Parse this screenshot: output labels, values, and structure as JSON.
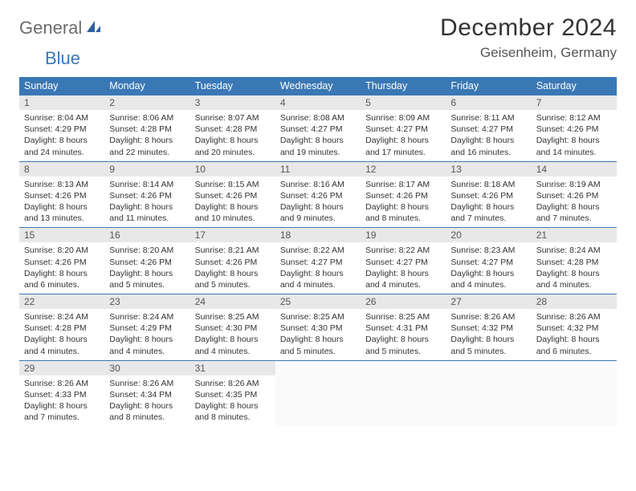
{
  "logo": {
    "part1": "General",
    "part2": "Blue"
  },
  "title": "December 2024",
  "location": "Geisenheim, Germany",
  "colors": {
    "header_bg": "#3a78b5",
    "header_text": "#ffffff",
    "daynum_bg": "#e8e8e8",
    "border": "#3a78b5",
    "logo_gray": "#6c6c6c",
    "logo_blue": "#3a78b5"
  },
  "calendar": {
    "type": "table",
    "columns": [
      "Sunday",
      "Monday",
      "Tuesday",
      "Wednesday",
      "Thursday",
      "Friday",
      "Saturday"
    ],
    "days": [
      {
        "n": "1",
        "sunrise": "8:04 AM",
        "sunset": "4:29 PM",
        "daylight": "8 hours and 24 minutes."
      },
      {
        "n": "2",
        "sunrise": "8:06 AM",
        "sunset": "4:28 PM",
        "daylight": "8 hours and 22 minutes."
      },
      {
        "n": "3",
        "sunrise": "8:07 AM",
        "sunset": "4:28 PM",
        "daylight": "8 hours and 20 minutes."
      },
      {
        "n": "4",
        "sunrise": "8:08 AM",
        "sunset": "4:27 PM",
        "daylight": "8 hours and 19 minutes."
      },
      {
        "n": "5",
        "sunrise": "8:09 AM",
        "sunset": "4:27 PM",
        "daylight": "8 hours and 17 minutes."
      },
      {
        "n": "6",
        "sunrise": "8:11 AM",
        "sunset": "4:27 PM",
        "daylight": "8 hours and 16 minutes."
      },
      {
        "n": "7",
        "sunrise": "8:12 AM",
        "sunset": "4:26 PM",
        "daylight": "8 hours and 14 minutes."
      },
      {
        "n": "8",
        "sunrise": "8:13 AM",
        "sunset": "4:26 PM",
        "daylight": "8 hours and 13 minutes."
      },
      {
        "n": "9",
        "sunrise": "8:14 AM",
        "sunset": "4:26 PM",
        "daylight": "8 hours and 11 minutes."
      },
      {
        "n": "10",
        "sunrise": "8:15 AM",
        "sunset": "4:26 PM",
        "daylight": "8 hours and 10 minutes."
      },
      {
        "n": "11",
        "sunrise": "8:16 AM",
        "sunset": "4:26 PM",
        "daylight": "8 hours and 9 minutes."
      },
      {
        "n": "12",
        "sunrise": "8:17 AM",
        "sunset": "4:26 PM",
        "daylight": "8 hours and 8 minutes."
      },
      {
        "n": "13",
        "sunrise": "8:18 AM",
        "sunset": "4:26 PM",
        "daylight": "8 hours and 7 minutes."
      },
      {
        "n": "14",
        "sunrise": "8:19 AM",
        "sunset": "4:26 PM",
        "daylight": "8 hours and 7 minutes."
      },
      {
        "n": "15",
        "sunrise": "8:20 AM",
        "sunset": "4:26 PM",
        "daylight": "8 hours and 6 minutes."
      },
      {
        "n": "16",
        "sunrise": "8:20 AM",
        "sunset": "4:26 PM",
        "daylight": "8 hours and 5 minutes."
      },
      {
        "n": "17",
        "sunrise": "8:21 AM",
        "sunset": "4:26 PM",
        "daylight": "8 hours and 5 minutes."
      },
      {
        "n": "18",
        "sunrise": "8:22 AM",
        "sunset": "4:27 PM",
        "daylight": "8 hours and 4 minutes."
      },
      {
        "n": "19",
        "sunrise": "8:22 AM",
        "sunset": "4:27 PM",
        "daylight": "8 hours and 4 minutes."
      },
      {
        "n": "20",
        "sunrise": "8:23 AM",
        "sunset": "4:27 PM",
        "daylight": "8 hours and 4 minutes."
      },
      {
        "n": "21",
        "sunrise": "8:24 AM",
        "sunset": "4:28 PM",
        "daylight": "8 hours and 4 minutes."
      },
      {
        "n": "22",
        "sunrise": "8:24 AM",
        "sunset": "4:28 PM",
        "daylight": "8 hours and 4 minutes."
      },
      {
        "n": "23",
        "sunrise": "8:24 AM",
        "sunset": "4:29 PM",
        "daylight": "8 hours and 4 minutes."
      },
      {
        "n": "24",
        "sunrise": "8:25 AM",
        "sunset": "4:30 PM",
        "daylight": "8 hours and 4 minutes."
      },
      {
        "n": "25",
        "sunrise": "8:25 AM",
        "sunset": "4:30 PM",
        "daylight": "8 hours and 5 minutes."
      },
      {
        "n": "26",
        "sunrise": "8:25 AM",
        "sunset": "4:31 PM",
        "daylight": "8 hours and 5 minutes."
      },
      {
        "n": "27",
        "sunrise": "8:26 AM",
        "sunset": "4:32 PM",
        "daylight": "8 hours and 5 minutes."
      },
      {
        "n": "28",
        "sunrise": "8:26 AM",
        "sunset": "4:32 PM",
        "daylight": "8 hours and 6 minutes."
      },
      {
        "n": "29",
        "sunrise": "8:26 AM",
        "sunset": "4:33 PM",
        "daylight": "8 hours and 7 minutes."
      },
      {
        "n": "30",
        "sunrise": "8:26 AM",
        "sunset": "4:34 PM",
        "daylight": "8 hours and 8 minutes."
      },
      {
        "n": "31",
        "sunrise": "8:26 AM",
        "sunset": "4:35 PM",
        "daylight": "8 hours and 8 minutes."
      }
    ],
    "labels": {
      "sunrise": "Sunrise:",
      "sunset": "Sunset:",
      "daylight": "Daylight:"
    }
  }
}
